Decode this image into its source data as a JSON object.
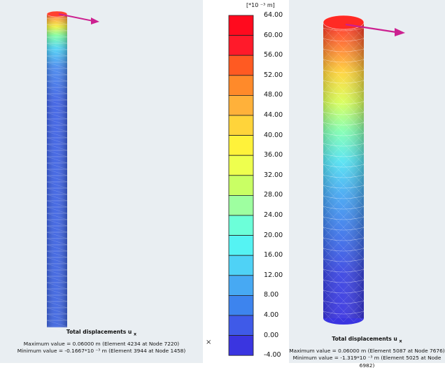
{
  "legend": {
    "unit": "[*10 ⁻³ m]",
    "ticks": [
      "64.00",
      "60.00",
      "56.00",
      "52.00",
      "48.00",
      "44.00",
      "40.00",
      "36.00",
      "32.00",
      "28.00",
      "24.00",
      "20.00",
      "16.00",
      "12.00",
      "8.00",
      "4.00",
      "0.00",
      "-4.00"
    ],
    "colors": [
      "#ff0a1e",
      "#ff1a2a",
      "#ff5a22",
      "#ff8a2a",
      "#ffb13a",
      "#ffd43a",
      "#fff23a",
      "#eeff4e",
      "#c9ff64",
      "#9effa0",
      "#6cffd9",
      "#55f3f3",
      "#4fd2f6",
      "#47a9f3",
      "#3d84ee",
      "#3f5ae8",
      "#3a35e0"
    ]
  },
  "left_info": {
    "title": "Total displacements u",
    "sub": "x",
    "max": "Maximum value = 0.06000 m (Element 4234 at Node 7220)",
    "min": "Minimum value = -0.1667*10 ⁻³ m (Element 3944 at Node 1458)"
  },
  "right_info": {
    "title": "Total displacements u",
    "sub": "x",
    "max": "Maximum value = 0.06000 m (Element 5087 at Node 7676)",
    "min": "Minimum value = -1.319*10 ⁻³ m (Element 5025 at Node 6982)"
  },
  "close_glyph": "×",
  "arrow_color": "#cc2090"
}
